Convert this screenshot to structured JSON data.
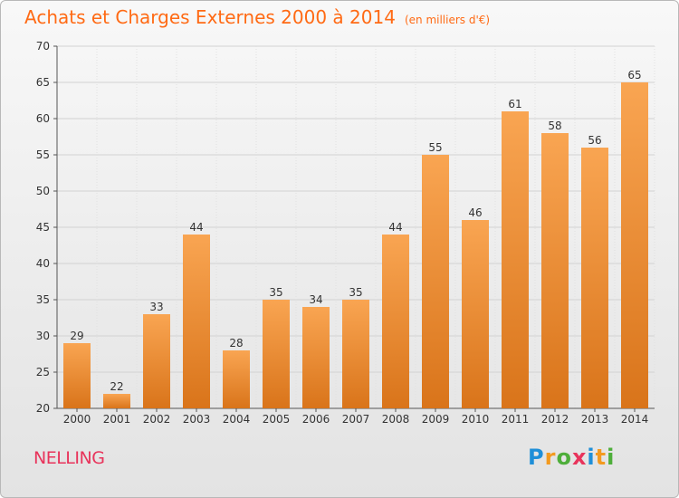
{
  "title": "Achats et Charges Externes 2000 à 2014",
  "unit": "(en milliers d'€)",
  "commune": "NELLING",
  "logo": {
    "letters": [
      {
        "char": "P",
        "color": "#1f8fd8"
      },
      {
        "char": "r",
        "color": "#f39a1f"
      },
      {
        "char": "o",
        "color": "#4eae3a"
      },
      {
        "char": "x",
        "color": "#e8345b"
      },
      {
        "char": "i",
        "color": "#1f8fd8"
      },
      {
        "char": "t",
        "color": "#f39a1f"
      },
      {
        "char": "i",
        "color": "#4eae3a"
      }
    ]
  },
  "chart_data": {
    "type": "bar",
    "title": "Achats et Charges Externes 2000 à 2014",
    "subtitle": "(en milliers d'€)",
    "categories": [
      "2000",
      "2001",
      "2002",
      "2003",
      "2004",
      "2005",
      "2006",
      "2007",
      "2008",
      "2009",
      "2010",
      "2011",
      "2012",
      "2013",
      "2014"
    ],
    "values": [
      29,
      22,
      33,
      44,
      28,
      35,
      34,
      35,
      44,
      55,
      46,
      61,
      58,
      56,
      65
    ],
    "ylim": [
      20,
      70
    ],
    "yticks": [
      20,
      25,
      30,
      35,
      40,
      45,
      50,
      55,
      60,
      65,
      70
    ],
    "grid": true,
    "bar_color": "#f28a2e"
  }
}
